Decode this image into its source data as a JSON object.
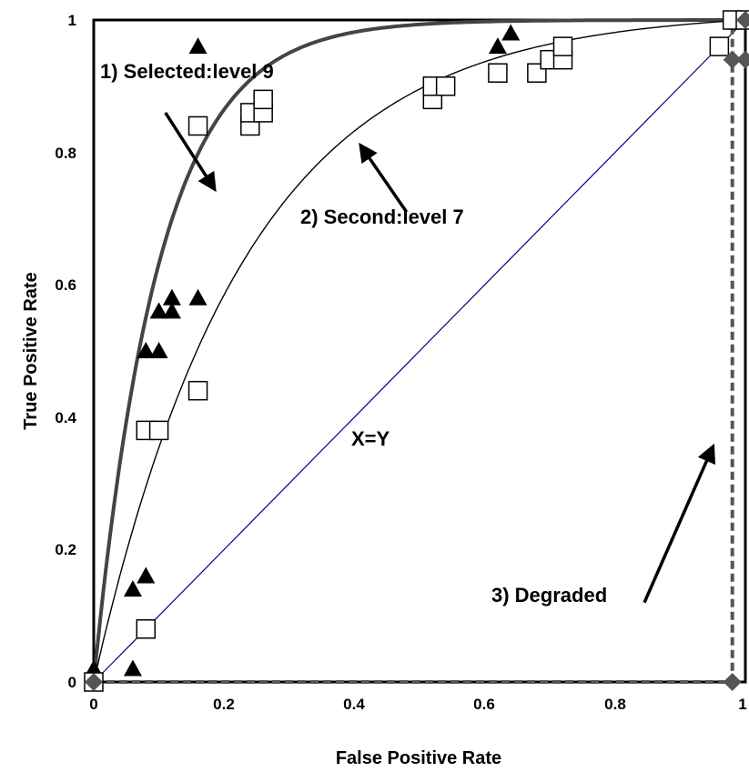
{
  "chart_data": {
    "type": "scatter",
    "title": "",
    "xlabel": "False Positive Rate",
    "ylabel": "True Positive Rate",
    "xlim": [
      0,
      1
    ],
    "ylim": [
      0,
      1
    ],
    "x_ticks": [
      "0",
      "0.2",
      "0.4",
      "0.6",
      "0.8",
      "1"
    ],
    "y_ticks": [
      "0",
      "0.2",
      "0.4",
      "0.6",
      "0.8",
      "1"
    ],
    "grid": false,
    "legend": "none",
    "series": [
      {
        "marker": "triangle",
        "color": "#000000",
        "points": [
          [
            0,
            0.02
          ],
          [
            0.06,
            0.02
          ],
          [
            0.06,
            0.14
          ],
          [
            0.08,
            0.16
          ],
          [
            0.08,
            0.5
          ],
          [
            0.1,
            0.5
          ],
          [
            0.1,
            0.56
          ],
          [
            0.12,
            0.56
          ],
          [
            0.12,
            0.58
          ],
          [
            0.16,
            0.58
          ],
          [
            0.16,
            0.96
          ],
          [
            0.62,
            0.96
          ],
          [
            0.64,
            0.98
          ],
          [
            0.98,
            1
          ],
          [
            1,
            1
          ]
        ]
      },
      {
        "marker": "square",
        "color": "#000000",
        "points": [
          [
            0,
            0
          ],
          [
            0.08,
            0.08
          ],
          [
            0.08,
            0.38
          ],
          [
            0.1,
            0.38
          ],
          [
            0.16,
            0.44
          ],
          [
            0.16,
            0.84
          ],
          [
            0.24,
            0.84
          ],
          [
            0.24,
            0.86
          ],
          [
            0.26,
            0.86
          ],
          [
            0.26,
            0.88
          ],
          [
            0.52,
            0.88
          ],
          [
            0.52,
            0.9
          ],
          [
            0.54,
            0.9
          ],
          [
            0.62,
            0.92
          ],
          [
            0.68,
            0.92
          ],
          [
            0.7,
            0.94
          ],
          [
            0.72,
            0.94
          ],
          [
            0.72,
            0.96
          ],
          [
            0.96,
            0.96
          ],
          [
            0.98,
            1
          ],
          [
            1,
            1
          ]
        ]
      },
      {
        "marker": "diamond",
        "color": "#555555",
        "points": [
          [
            0,
            0
          ],
          [
            0.98,
            0
          ],
          [
            0.98,
            0.94
          ],
          [
            1,
            0.94
          ],
          [
            1,
            1
          ]
        ]
      }
    ],
    "curves": [
      {
        "label": "1) Selected:level 9",
        "style": "thick",
        "color": "#444444",
        "k": 10
      },
      {
        "label": "2) Second:level 7",
        "style": "thin",
        "color": "#000000",
        "k": 4.3
      },
      {
        "label": "X=Y",
        "style": "diagonal",
        "color": "#00008b"
      },
      {
        "label": "3) Degraded",
        "style": "dashed",
        "color": "#555555",
        "path": [
          [
            0,
            0
          ],
          [
            0.98,
            0
          ],
          [
            0.98,
            1
          ],
          [
            1,
            1
          ]
        ]
      }
    ],
    "annotations": [
      {
        "text": "1) Selected:level 9",
        "arrow_from": [
          0.11,
          0.86
        ],
        "arrow_to": [
          0.185,
          0.745
        ]
      },
      {
        "text": "2) Second:level 7",
        "arrow_from": [
          0.48,
          0.71
        ],
        "arrow_to": [
          0.41,
          0.81
        ]
      },
      {
        "text": "X=Y"
      },
      {
        "text": "3) Degraded",
        "arrow_from": [
          0.845,
          0.12
        ],
        "arrow_to": [
          0.95,
          0.355
        ]
      }
    ]
  }
}
